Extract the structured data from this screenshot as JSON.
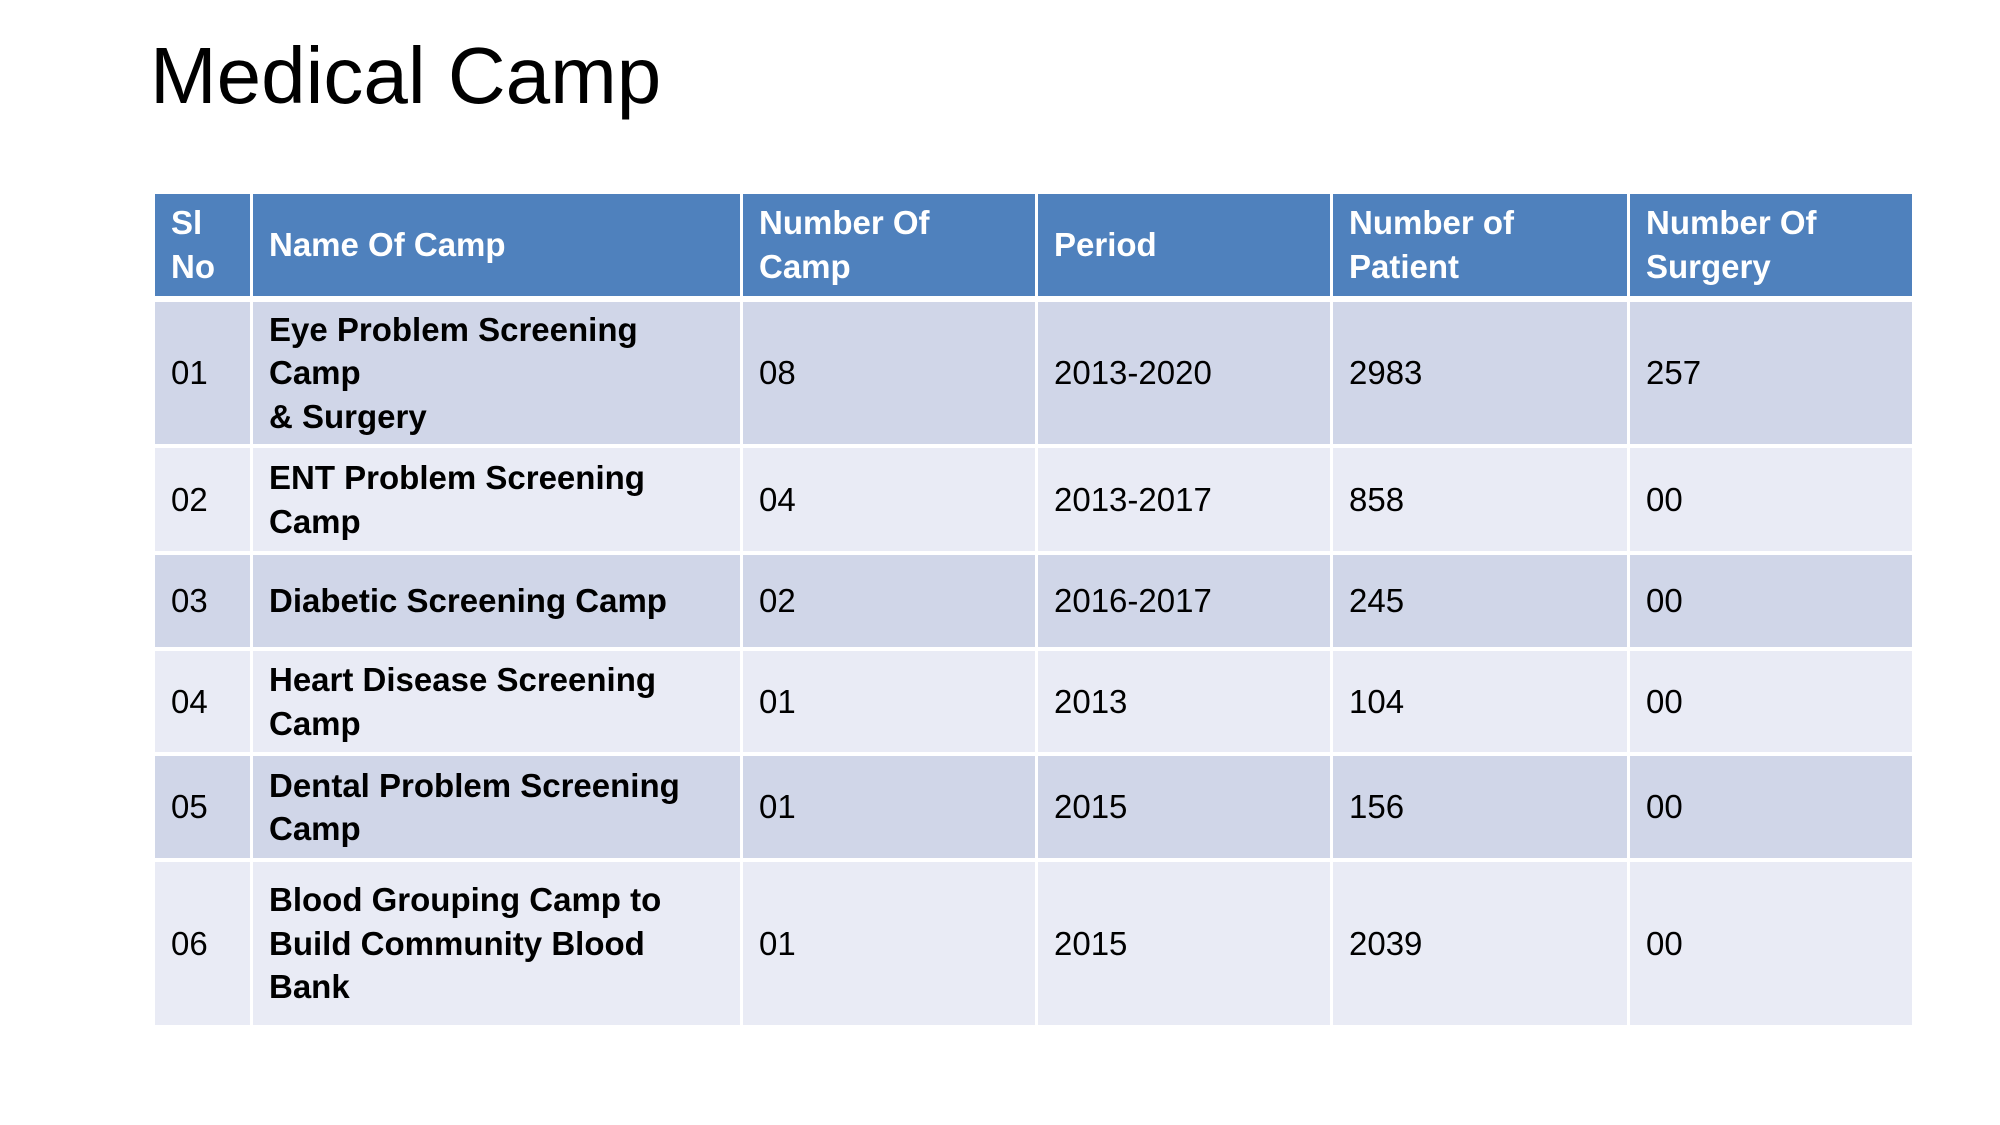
{
  "slide": {
    "title": "Medical Camp"
  },
  "colors": {
    "header_bg": "#4F81BD",
    "band_dark": "#D0D6E8",
    "band_light": "#E9EBF5",
    "header_text": "#FFFFFF",
    "body_text": "#000000",
    "grid": "#FFFFFF",
    "slide_bg": "#FFFFFF",
    "title_text": "#000000"
  },
  "table": {
    "columns": [
      {
        "key": "sl",
        "label": "Sl\nNo"
      },
      {
        "key": "name",
        "label": "Name Of Camp"
      },
      {
        "key": "camps",
        "label": "Number Of\nCamp"
      },
      {
        "key": "period",
        "label": "Period"
      },
      {
        "key": "patients",
        "label": "Number of\nPatient"
      },
      {
        "key": "surgeries",
        "label": "Number Of\nSurgery"
      }
    ],
    "rows": [
      {
        "sl": "01",
        "name": "Eye Problem Screening Camp\n& Surgery",
        "camps": "08",
        "period": "2013-2020",
        "patients": "2983",
        "surgeries": "257"
      },
      {
        "sl": "02",
        "name": "ENT Problem Screening\nCamp",
        "camps": "04",
        "period": "2013-2017",
        "patients": "858",
        "surgeries": "00"
      },
      {
        "sl": "03",
        "name": "Diabetic Screening Camp",
        "camps": "02",
        "period": "2016-2017",
        "patients": "245",
        "surgeries": "00"
      },
      {
        "sl": "04",
        "name": "Heart Disease Screening\nCamp",
        "camps": "01",
        "period": "2013",
        "patients": "104",
        "surgeries": "00"
      },
      {
        "sl": "05",
        "name": "Dental Problem Screening\nCamp",
        "camps": "01",
        "period": "2015",
        "patients": "156",
        "surgeries": "00"
      },
      {
        "sl": "06",
        "name": "Blood Grouping Camp to\nBuild Community Blood Bank",
        "camps": "01",
        "period": "2015",
        "patients": "2039",
        "surgeries": "00"
      }
    ]
  }
}
